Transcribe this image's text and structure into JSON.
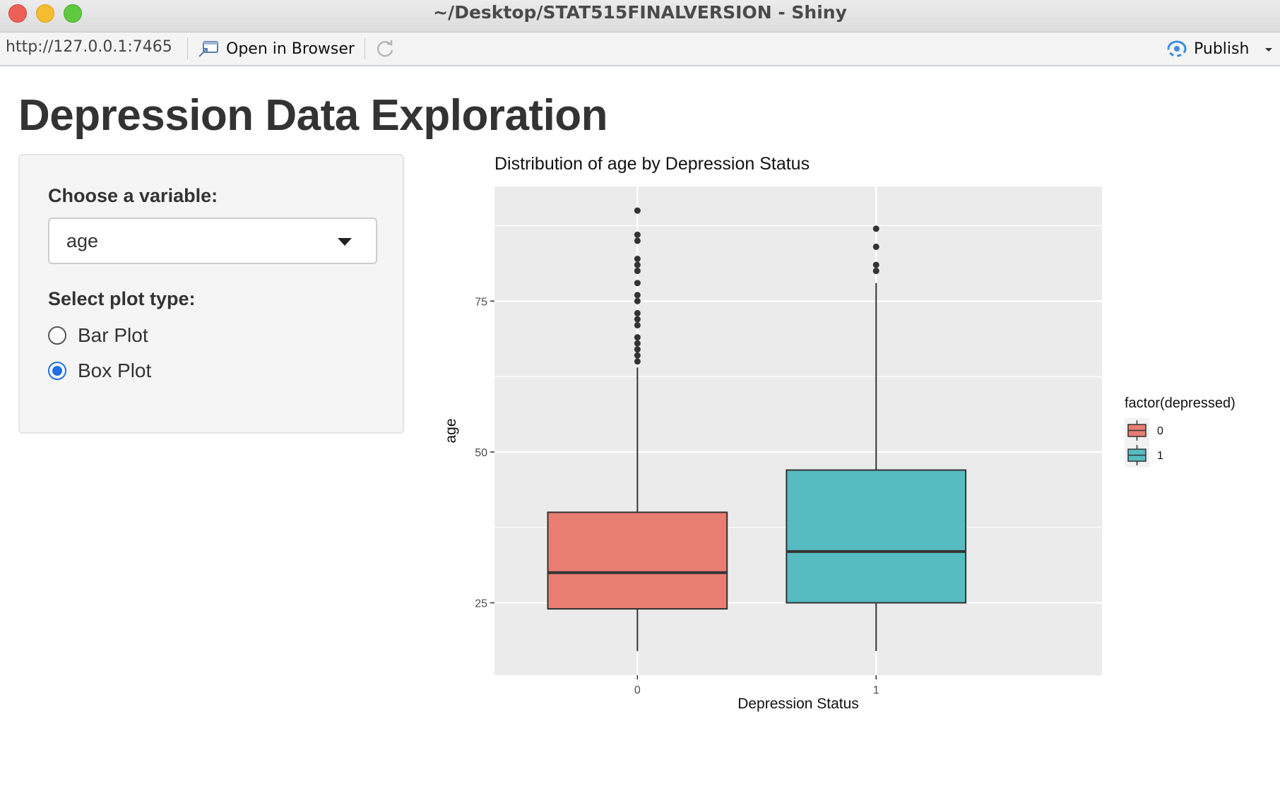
{
  "window": {
    "title": "~/Desktop/STAT515FINALVERSION - Shiny"
  },
  "toolbar": {
    "url": "http://127.0.0.1:7465",
    "open_in_browser": "Open in Browser",
    "publish": "Publish",
    "icons": [
      "open-in-browser-icon",
      "refresh-icon",
      "publish-icon",
      "chevron-down-icon"
    ]
  },
  "app": {
    "title": "Depression Data Exploration",
    "variable_label": "Choose a variable:",
    "variable_value": "age",
    "plot_type_label": "Select plot type:",
    "plot_types": [
      {
        "label": "Bar Plot",
        "checked": false
      },
      {
        "label": "Box Plot",
        "checked": true
      }
    ]
  },
  "colors": {
    "box_0": "#E87D72",
    "box_1": "#56BCC2",
    "radio_accent": "#1f6fe5",
    "panel_bg": "#EBEBEB"
  },
  "chart_data": {
    "type": "box",
    "title": "Distribution of age by Depression Status",
    "xlabel": "Depression Status",
    "ylabel": "age",
    "categories": [
      "0",
      "1"
    ],
    "y_ticks": [
      25,
      50,
      75
    ],
    "ylim": [
      13,
      94
    ],
    "grid": true,
    "legend": {
      "title": "factor(depressed)",
      "entries": [
        "0",
        "1"
      ],
      "placement": "right"
    },
    "boxes": [
      {
        "category": "0",
        "whisker_low": 17,
        "q1": 24,
        "median": 30,
        "q3": 40,
        "whisker_high": 64,
        "outliers": [
          65,
          66,
          67,
          68,
          69,
          71,
          72,
          73,
          75,
          76,
          78,
          80,
          81,
          82,
          85,
          86,
          90
        ]
      },
      {
        "category": "1",
        "whisker_low": 17,
        "q1": 25,
        "median": 33.5,
        "q3": 47,
        "whisker_high": 78,
        "outliers": [
          80,
          81,
          84,
          87
        ]
      }
    ]
  }
}
